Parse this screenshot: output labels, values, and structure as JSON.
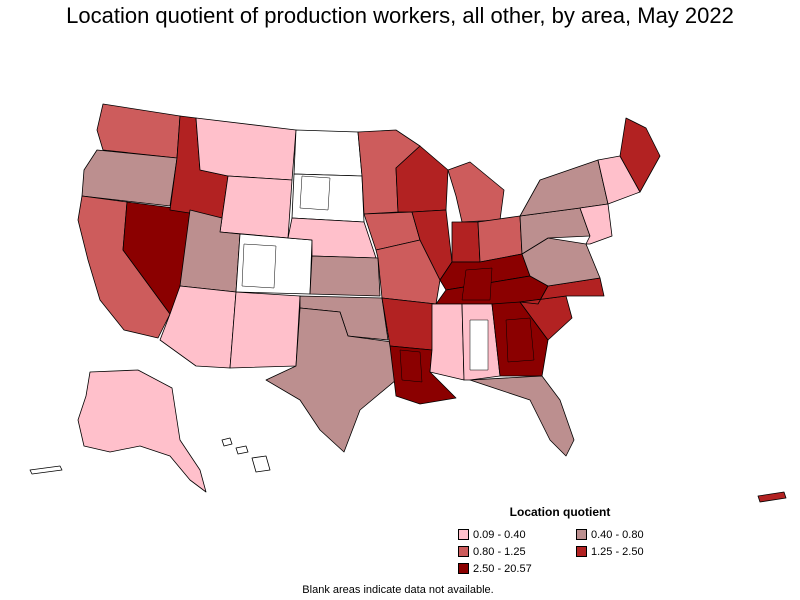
{
  "title": "Location quotient of production workers, all other, by area, May 2022",
  "legend": {
    "title": "Location quotient",
    "items": [
      {
        "label": "0.09 - 0.40",
        "color": "#FFC0CB"
      },
      {
        "label": "0.40 - 0.80",
        "color": "#BC8F8F"
      },
      {
        "label": "0.80 - 1.25",
        "color": "#CD5C5C"
      },
      {
        "label": "1.25 - 2.50",
        "color": "#B22222"
      },
      {
        "label": "2.50 - 20.57",
        "color": "#8B0000"
      }
    ]
  },
  "footnote": "Blank areas indicate data not available.",
  "colors": {
    "no_data": "#FFFFFF",
    "border": "#000000"
  },
  "regions": {
    "alaska": "0.09 - 0.40",
    "hawaii": "no data",
    "puerto_rico": "1.25 - 2.50",
    "nevada": "2.50 - 20.57",
    "southeast": "2.50 - 20.57",
    "maine": "1.25 - 2.50",
    "dakotas": "no data",
    "mountain_west": "0.09 - 0.40",
    "texas_oklahoma": "0.40 - 0.80",
    "midwest": "0.80 - 1.25"
  }
}
